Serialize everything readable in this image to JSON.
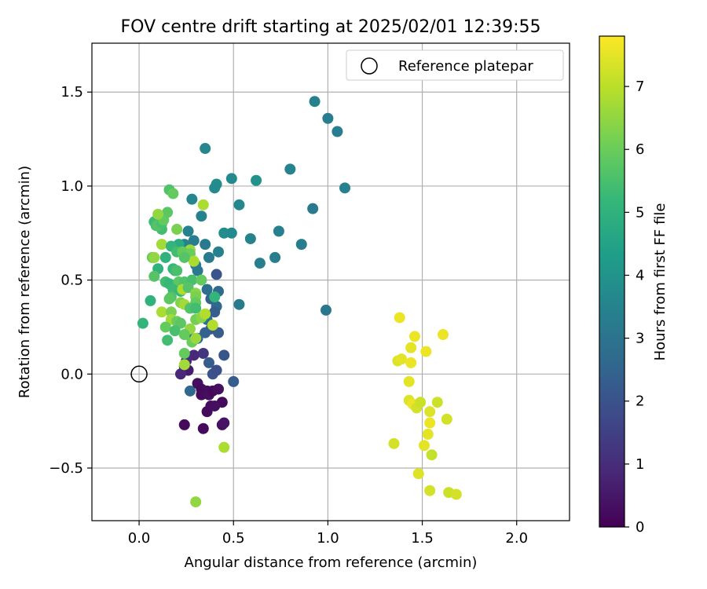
{
  "chart_data": {
    "type": "scatter",
    "title": "FOV centre drift starting at 2025/02/01 12:39:55",
    "xlabel": "Angular distance from reference (arcmin)",
    "ylabel": "Rotation from reference (arcmin)",
    "xlim": [
      -0.25,
      2.28
    ],
    "ylim": [
      -0.78,
      1.76
    ],
    "x_ticks": [
      0.0,
      0.5,
      1.0,
      1.5,
      2.0
    ],
    "x_tick_labels": [
      "0.0",
      "0.5",
      "1.0",
      "1.5",
      "2.0"
    ],
    "y_ticks": [
      -0.5,
      0.0,
      0.5,
      1.0,
      1.5
    ],
    "y_tick_labels": [
      "−0.5",
      "0.0",
      "0.5",
      "1.0",
      "1.5"
    ],
    "grid": true,
    "legend": {
      "position": "top-right",
      "entries": [
        "Reference platepar"
      ]
    },
    "reference_point": {
      "name": "Reference platepar",
      "x": 0.0,
      "y": 0.0,
      "marker": "open-circle"
    },
    "colorbar": {
      "label": "Hours from first FF file",
      "colormap": "viridis",
      "range": [
        0,
        7.8
      ],
      "ticks": [
        0,
        1,
        2,
        3,
        4,
        5,
        6,
        7
      ],
      "tick_labels": [
        "0",
        "1",
        "2",
        "3",
        "4",
        "5",
        "6",
        "7"
      ],
      "colors": [
        "#440154",
        "#482878",
        "#3e4989",
        "#31688e",
        "#26828e",
        "#1f9e89",
        "#35b779",
        "#6ece58",
        "#b5de2b",
        "#fde725"
      ]
    },
    "points": [
      [
        0.93,
        1.45,
        3.4
      ],
      [
        1.0,
        1.36,
        3.3
      ],
      [
        1.05,
        1.29,
        3.3
      ],
      [
        0.35,
        1.2,
        3.6
      ],
      [
        0.8,
        1.09,
        3.5
      ],
      [
        1.09,
        0.99,
        3.4
      ],
      [
        0.49,
        1.04,
        3.7
      ],
      [
        0.62,
        1.03,
        4.0
      ],
      [
        0.41,
        1.01,
        3.8
      ],
      [
        0.4,
        0.99,
        3.7
      ],
      [
        0.28,
        0.93,
        3.6
      ],
      [
        0.92,
        0.88,
        3.2
      ],
      [
        0.53,
        0.9,
        3.6
      ],
      [
        0.33,
        0.84,
        3.5
      ],
      [
        0.45,
        0.75,
        3.8
      ],
      [
        0.49,
        0.75,
        3.7
      ],
      [
        0.74,
        0.76,
        3.4
      ],
      [
        0.59,
        0.72,
        3.5
      ],
      [
        0.86,
        0.69,
        3.3
      ],
      [
        0.72,
        0.62,
        3.3
      ],
      [
        0.64,
        0.59,
        3.3
      ],
      [
        0.26,
        0.76,
        3.4
      ],
      [
        0.29,
        0.71,
        3.3
      ],
      [
        0.35,
        0.69,
        3.2
      ],
      [
        0.24,
        0.69,
        3.5
      ],
      [
        0.42,
        0.65,
        3.4
      ],
      [
        0.37,
        0.62,
        3.2
      ],
      [
        0.3,
        0.58,
        3.3
      ],
      [
        0.31,
        0.55,
        3.2
      ],
      [
        0.41,
        0.53,
        2.0
      ],
      [
        0.36,
        0.45,
        2.8
      ],
      [
        0.42,
        0.44,
        2.7
      ],
      [
        0.38,
        0.4,
        2.4
      ],
      [
        0.41,
        0.36,
        2.6
      ],
      [
        0.4,
        0.33,
        2.3
      ],
      [
        0.36,
        0.29,
        2.9
      ],
      [
        0.38,
        0.24,
        2.2
      ],
      [
        0.42,
        0.22,
        2.3
      ],
      [
        0.35,
        0.22,
        2.4
      ],
      [
        0.31,
        0.19,
        2.6
      ],
      [
        0.26,
        0.21,
        2.5
      ],
      [
        0.99,
        0.34,
        3.1
      ],
      [
        0.53,
        0.37,
        3.2
      ],
      [
        0.45,
        0.1,
        2.1
      ],
      [
        0.37,
        0.06,
        2.3
      ],
      [
        0.39,
        0.0,
        2.0
      ],
      [
        0.41,
        0.02,
        1.9
      ],
      [
        0.5,
        -0.04,
        2.3
      ],
      [
        0.27,
        -0.09,
        2.6
      ],
      [
        0.34,
        0.11,
        1.2
      ],
      [
        0.29,
        0.1,
        0.9
      ],
      [
        0.25,
        0.07,
        1.0
      ],
      [
        0.24,
        0.04,
        0.8
      ],
      [
        0.26,
        0.02,
        0.6
      ],
      [
        0.22,
        0.0,
        0.9
      ],
      [
        0.31,
        -0.05,
        0.3
      ],
      [
        0.33,
        -0.08,
        0.2
      ],
      [
        0.36,
        -0.09,
        0.3
      ],
      [
        0.33,
        -0.11,
        0.2
      ],
      [
        0.37,
        -0.11,
        0.3
      ],
      [
        0.39,
        -0.09,
        0.2
      ],
      [
        0.42,
        -0.08,
        0.3
      ],
      [
        0.38,
        -0.17,
        0.2
      ],
      [
        0.36,
        -0.2,
        0.2
      ],
      [
        0.44,
        -0.15,
        0.2
      ],
      [
        0.4,
        -0.17,
        0.3
      ],
      [
        0.24,
        -0.27,
        0.2
      ],
      [
        0.34,
        -0.29,
        0.2
      ],
      [
        0.44,
        -0.27,
        0.3
      ],
      [
        0.45,
        -0.26,
        0.4
      ],
      [
        0.08,
        0.81,
        5.3
      ],
      [
        0.09,
        0.79,
        5.5
      ],
      [
        0.12,
        0.77,
        5.4
      ],
      [
        0.1,
        0.79,
        5.7
      ],
      [
        0.12,
        0.8,
        5.5
      ],
      [
        0.13,
        0.82,
        5.9
      ],
      [
        0.15,
        0.86,
        5.8
      ],
      [
        0.16,
        0.98,
        5.6
      ],
      [
        0.18,
        0.96,
        5.9
      ],
      [
        0.1,
        0.85,
        6.5
      ],
      [
        0.2,
        0.77,
        6.2
      ],
      [
        0.12,
        0.69,
        6.7
      ],
      [
        0.21,
        0.69,
        4.8
      ],
      [
        0.17,
        0.68,
        5.1
      ],
      [
        0.2,
        0.65,
        5.4
      ],
      [
        0.27,
        0.66,
        6.6
      ],
      [
        0.23,
        0.65,
        5.9
      ],
      [
        0.27,
        0.64,
        6.0
      ],
      [
        0.07,
        0.62,
        5.9
      ],
      [
        0.08,
        0.62,
        6.5
      ],
      [
        0.14,
        0.62,
        5.0
      ],
      [
        0.29,
        0.6,
        6.8
      ],
      [
        0.24,
        0.62,
        5.7
      ],
      [
        0.1,
        0.56,
        5.0
      ],
      [
        0.18,
        0.56,
        5.2
      ],
      [
        0.19,
        0.55,
        5.3
      ],
      [
        0.2,
        0.55,
        5.5
      ],
      [
        0.08,
        0.52,
        5.7
      ],
      [
        0.14,
        0.49,
        5.4
      ],
      [
        0.16,
        0.48,
        5.2
      ],
      [
        0.21,
        0.49,
        5.8
      ],
      [
        0.24,
        0.49,
        5.6
      ],
      [
        0.28,
        0.5,
        5.5
      ],
      [
        0.33,
        0.5,
        5.9
      ],
      [
        0.18,
        0.45,
        5.3
      ],
      [
        0.22,
        0.44,
        5.2
      ],
      [
        0.23,
        0.45,
        6.8
      ],
      [
        0.26,
        0.46,
        5.7
      ],
      [
        0.3,
        0.43,
        6.4
      ],
      [
        0.3,
        0.41,
        6.2
      ],
      [
        0.17,
        0.41,
        5.6
      ],
      [
        0.16,
        0.4,
        5.8
      ],
      [
        0.22,
        0.38,
        6.3
      ],
      [
        0.24,
        0.37,
        6.7
      ],
      [
        0.3,
        0.38,
        5.9
      ],
      [
        0.4,
        0.41,
        5.1
      ],
      [
        0.27,
        0.35,
        5.6
      ],
      [
        0.3,
        0.35,
        5.4
      ],
      [
        0.06,
        0.39,
        5.0
      ],
      [
        0.02,
        0.27,
        5.1
      ],
      [
        0.12,
        0.33,
        6.8
      ],
      [
        0.17,
        0.33,
        6.2
      ],
      [
        0.17,
        0.29,
        6.7
      ],
      [
        0.2,
        0.28,
        6.0
      ],
      [
        0.22,
        0.27,
        5.8
      ],
      [
        0.3,
        0.29,
        6.1
      ],
      [
        0.33,
        0.3,
        6.4
      ],
      [
        0.35,
        0.32,
        6.9
      ],
      [
        0.14,
        0.25,
        5.9
      ],
      [
        0.19,
        0.23,
        5.5
      ],
      [
        0.27,
        0.24,
        6.5
      ],
      [
        0.39,
        0.26,
        6.9
      ],
      [
        0.24,
        0.21,
        5.9
      ],
      [
        0.28,
        0.17,
        6.0
      ],
      [
        0.3,
        0.19,
        6.6
      ],
      [
        0.15,
        0.18,
        5.4
      ],
      [
        0.24,
        0.11,
        5.9
      ],
      [
        0.24,
        0.05,
        6.7
      ],
      [
        0.34,
        0.9,
        6.8
      ],
      [
        0.45,
        -0.39,
        6.8
      ],
      [
        0.3,
        -0.68,
        6.5
      ],
      [
        1.38,
        0.3,
        7.6
      ],
      [
        1.46,
        0.2,
        7.6
      ],
      [
        1.61,
        0.21,
        7.6
      ],
      [
        1.44,
        0.14,
        7.5
      ],
      [
        1.52,
        0.12,
        7.6
      ],
      [
        1.37,
        0.07,
        7.4
      ],
      [
        1.39,
        0.08,
        7.5
      ],
      [
        1.44,
        0.06,
        7.6
      ],
      [
        1.43,
        -0.04,
        7.5
      ],
      [
        1.43,
        -0.14,
        7.4
      ],
      [
        1.45,
        -0.16,
        7.6
      ],
      [
        1.47,
        -0.18,
        7.3
      ],
      [
        1.49,
        -0.15,
        7.2
      ],
      [
        1.58,
        -0.15,
        7.2
      ],
      [
        1.54,
        -0.2,
        7.4
      ],
      [
        1.54,
        -0.26,
        7.6
      ],
      [
        1.63,
        -0.24,
        7.3
      ],
      [
        1.53,
        -0.32,
        7.5
      ],
      [
        1.35,
        -0.37,
        7.3
      ],
      [
        1.51,
        -0.38,
        7.5
      ],
      [
        1.55,
        -0.43,
        7.1
      ],
      [
        1.48,
        -0.53,
        7.4
      ],
      [
        1.54,
        -0.62,
        7.3
      ],
      [
        1.64,
        -0.63,
        7.2
      ],
      [
        1.68,
        -0.64,
        7.3
      ]
    ]
  }
}
